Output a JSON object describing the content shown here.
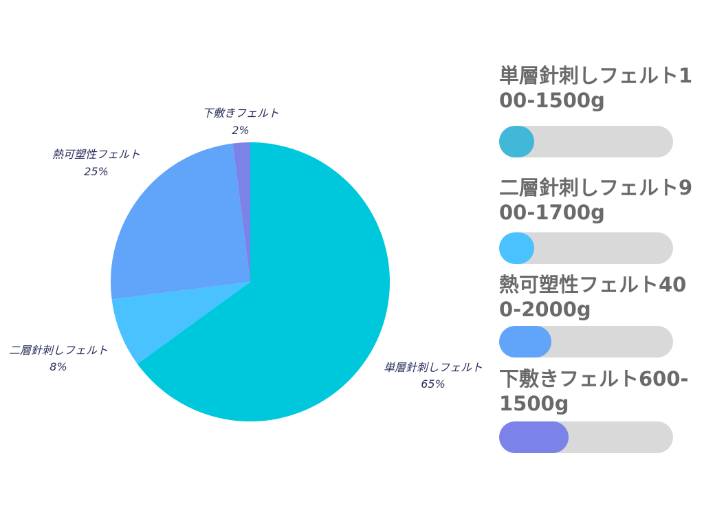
{
  "chart_data": [
    {
      "type": "pie",
      "series": [
        {
          "label": "単層針刺しフェルト",
          "percent_label": "65%",
          "value": 65,
          "color": "#00c8dc"
        },
        {
          "label": "二層針刺しフェルト",
          "percent_label": "8%",
          "value": 8,
          "color": "#4ac2ff"
        },
        {
          "label": "熱可塑性フェルト",
          "percent_label": "25%",
          "value": 25,
          "color": "#61a5fb"
        },
        {
          "label": "下敷きフェルト",
          "percent_label": "2%",
          "value": 2,
          "color": "#7b82e8"
        }
      ]
    },
    {
      "type": "bar",
      "orientation": "horizontal",
      "categories": [
        "単層針刺しフェルト100-1500g",
        "二層針刺しフェルト900-1700g",
        "熱可塑性フェルト400-2000g",
        "下敷きフェルト600-1500g"
      ],
      "values": [
        0.2,
        0.2,
        0.3,
        0.4
      ],
      "colors": [
        "#41b8d8",
        "#4ac2ff",
        "#61a5fb",
        "#7b82e8"
      ],
      "track_color": "#d9d9d9"
    }
  ]
}
